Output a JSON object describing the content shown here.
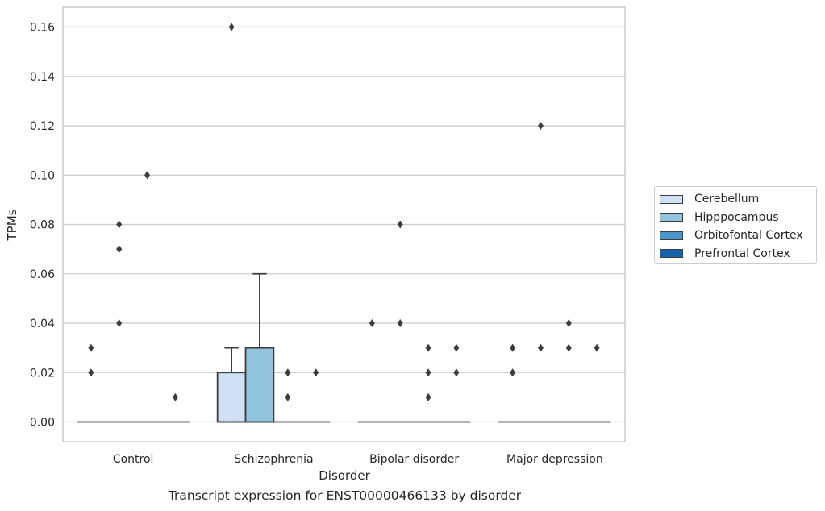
{
  "chart_data": {
    "type": "box",
    "xlabel": "Disorder",
    "ylabel": "TPMs",
    "ylim": [
      -0.008,
      0.168
    ],
    "yticks": [
      "0.00",
      "0.02",
      "0.04",
      "0.06",
      "0.08",
      "0.10",
      "0.12",
      "0.14",
      "0.16"
    ],
    "grid": "horizontal",
    "legend_position": "right",
    "categories": [
      "Control",
      "Schizophrenia",
      "Bipolar disorder",
      "Major depression"
    ],
    "hue": [
      {
        "name": "Cerebellum",
        "color": "#cfe1f2"
      },
      {
        "name": "Hipppocampus",
        "color": "#93c4de"
      },
      {
        "name": "Orbitofontal Cortex",
        "color": "#4b97c9"
      },
      {
        "name": "Prefrontal Cortex",
        "color": "#1764ab"
      }
    ],
    "boxes": [
      {
        "category": "Control",
        "hue": "Cerebellum",
        "q1": 0,
        "median": 0,
        "q3": 0,
        "whisker_low": 0,
        "whisker_high": 0,
        "outliers": [
          0.02,
          0.03
        ]
      },
      {
        "category": "Control",
        "hue": "Hipppocampus",
        "q1": 0,
        "median": 0,
        "q3": 0,
        "whisker_low": 0,
        "whisker_high": 0,
        "outliers": [
          0.04,
          0.07,
          0.08
        ]
      },
      {
        "category": "Control",
        "hue": "Orbitofontal Cortex",
        "q1": 0,
        "median": 0,
        "q3": 0,
        "whisker_low": 0,
        "whisker_high": 0,
        "outliers": [
          0.1
        ]
      },
      {
        "category": "Control",
        "hue": "Prefrontal Cortex",
        "q1": 0,
        "median": 0,
        "q3": 0,
        "whisker_low": 0,
        "whisker_high": 0,
        "outliers": [
          0.01
        ]
      },
      {
        "category": "Schizophrenia",
        "hue": "Cerebellum",
        "q1": 0,
        "median": 0,
        "q3": 0.02,
        "whisker_low": 0,
        "whisker_high": 0.03,
        "outliers": [
          0.16
        ]
      },
      {
        "category": "Schizophrenia",
        "hue": "Hipppocampus",
        "q1": 0,
        "median": 0,
        "q3": 0.03,
        "whisker_low": 0,
        "whisker_high": 0.06,
        "outliers": []
      },
      {
        "category": "Schizophrenia",
        "hue": "Orbitofontal Cortex",
        "q1": 0,
        "median": 0,
        "q3": 0,
        "whisker_low": 0,
        "whisker_high": 0,
        "outliers": [
          0.01,
          0.02
        ]
      },
      {
        "category": "Schizophrenia",
        "hue": "Prefrontal Cortex",
        "q1": 0,
        "median": 0,
        "q3": 0,
        "whisker_low": 0,
        "whisker_high": 0,
        "outliers": [
          0.02
        ]
      },
      {
        "category": "Bipolar disorder",
        "hue": "Cerebellum",
        "q1": 0,
        "median": 0,
        "q3": 0,
        "whisker_low": 0,
        "whisker_high": 0,
        "outliers": [
          0.04
        ]
      },
      {
        "category": "Bipolar disorder",
        "hue": "Hipppocampus",
        "q1": 0,
        "median": 0,
        "q3": 0,
        "whisker_low": 0,
        "whisker_high": 0,
        "outliers": [
          0.04,
          0.08
        ]
      },
      {
        "category": "Bipolar disorder",
        "hue": "Orbitofontal Cortex",
        "q1": 0,
        "median": 0,
        "q3": 0,
        "whisker_low": 0,
        "whisker_high": 0,
        "outliers": [
          0.01,
          0.02,
          0.03
        ]
      },
      {
        "category": "Bipolar disorder",
        "hue": "Prefrontal Cortex",
        "q1": 0,
        "median": 0,
        "q3": 0,
        "whisker_low": 0,
        "whisker_high": 0,
        "outliers": [
          0.02,
          0.03
        ]
      },
      {
        "category": "Major depression",
        "hue": "Cerebellum",
        "q1": 0,
        "median": 0,
        "q3": 0,
        "whisker_low": 0,
        "whisker_high": 0,
        "outliers": [
          0.02,
          0.03
        ]
      },
      {
        "category": "Major depression",
        "hue": "Hipppocampus",
        "q1": 0,
        "median": 0,
        "q3": 0,
        "whisker_low": 0,
        "whisker_high": 0,
        "outliers": [
          0.03,
          0.12
        ]
      },
      {
        "category": "Major depression",
        "hue": "Orbitofontal Cortex",
        "q1": 0,
        "median": 0,
        "q3": 0,
        "whisker_low": 0,
        "whisker_high": 0,
        "outliers": [
          0.03,
          0.04
        ]
      },
      {
        "category": "Major depression",
        "hue": "Prefrontal Cortex",
        "q1": 0,
        "median": 0,
        "q3": 0,
        "whisker_low": 0,
        "whisker_high": 0,
        "outliers": [
          0.03
        ]
      }
    ]
  },
  "caption": "Transcript expression for ENST00000466133 by disorder"
}
